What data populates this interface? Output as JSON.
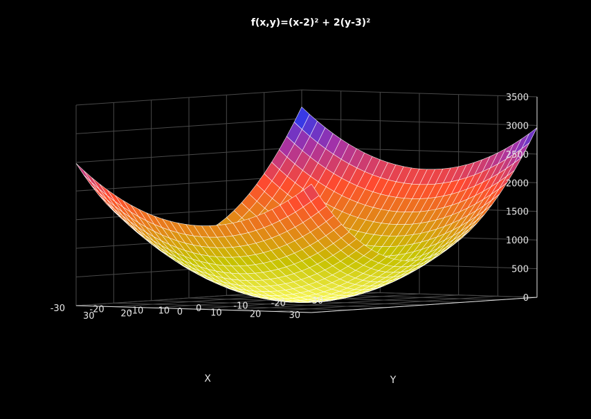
{
  "chart_data": {
    "type": "surface",
    "title": "f(x,y)=(x-2)² + 2(y-3)²",
    "function": "(x-2)^2 + 2*(y-3)^2",
    "xlabel": "X",
    "ylabel": "Y",
    "zlabel": "",
    "xlim": [
      -30,
      30
    ],
    "ylim": [
      -30,
      30
    ],
    "zlim": [
      0,
      3500
    ],
    "x_ticks": [
      -30,
      -20,
      -10,
      0,
      10,
      20,
      30
    ],
    "y_ticks": [
      -30,
      -20,
      -10,
      0,
      10,
      20,
      30
    ],
    "z_ticks": [
      0,
      500,
      1000,
      1500,
      2000,
      2500,
      3000,
      3500
    ],
    "grid": true,
    "grid_steps": 30,
    "colormap": [
      "#ffff66",
      "#c7c200",
      "#ff4a2e",
      "#a531a6",
      "#0a3cff"
    ],
    "colormap_stops": [
      0,
      0.25,
      0.6,
      0.8,
      1
    ],
    "background": "#000000",
    "axis_color": "#e6e6e6",
    "grid_color": "#4a4a4a",
    "mesh_color": "#ffffff"
  }
}
